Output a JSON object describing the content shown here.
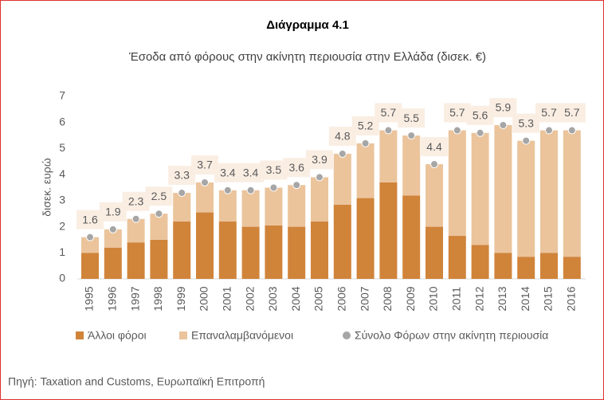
{
  "chart_data": {
    "type": "bar",
    "stacked": true,
    "title": "Διάγραμμα 4.1",
    "subtitle": "Έσοδα από φόρους στην ακίνητη περιουσία στην Ελλάδα (δισεκ. €)",
    "y_label": "δισεκ. ευρώ",
    "source": "Πηγή: Taxation and Customs, Ευρωπαϊκή Επιτροπή",
    "categories": [
      "1995",
      "1996",
      "1997",
      "1998",
      "1999",
      "2000",
      "2001",
      "2002",
      "2003",
      "2004",
      "2005",
      "2006",
      "2007",
      "2008",
      "2009",
      "2010",
      "2011",
      "2012",
      "2013",
      "2014",
      "2015",
      "2016"
    ],
    "series": [
      {
        "name": "Άλλοι φόροι",
        "color": "#d0843a",
        "values": [
          1.0,
          1.2,
          1.4,
          1.5,
          2.2,
          2.55,
          2.2,
          2.0,
          2.05,
          2.0,
          2.2,
          2.85,
          3.1,
          3.7,
          3.2,
          2.0,
          1.65,
          1.3,
          1.0,
          0.85,
          1.0,
          0.85
        ]
      },
      {
        "name": "Επαναλαμβανόμενοι",
        "color": "#ebc49c",
        "values": [
          0.6,
          0.7,
          0.9,
          1.0,
          1.1,
          1.15,
          1.2,
          1.4,
          1.45,
          1.6,
          1.7,
          1.95,
          2.1,
          2.0,
          2.3,
          2.4,
          4.05,
          4.3,
          4.9,
          4.45,
          4.7,
          4.85
        ]
      },
      {
        "name": "Σύνολο Φόρων στην ακίνητη περιουσία",
        "type": "scatter",
        "color": "#a6a6a6",
        "values": [
          1.6,
          1.9,
          2.3,
          2.5,
          3.3,
          3.7,
          3.4,
          3.4,
          3.5,
          3.6,
          3.9,
          4.8,
          5.2,
          5.7,
          5.5,
          4.4,
          5.7,
          5.6,
          5.9,
          5.3,
          5.7,
          5.7
        ]
      }
    ],
    "ylim": [
      0,
      7
    ],
    "yticks": [
      0,
      1,
      2,
      3,
      4,
      5,
      6,
      7
    ],
    "grid": false
  }
}
